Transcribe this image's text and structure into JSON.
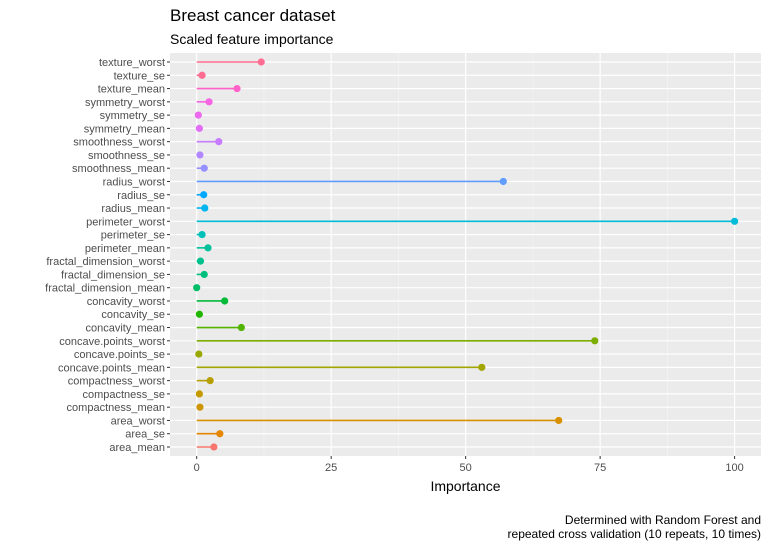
{
  "chart_data": {
    "type": "lollipop",
    "title": "Breast cancer dataset",
    "subtitle": "Scaled feature importance",
    "xlabel": "Importance",
    "ylabel": "",
    "xlim": [
      0,
      100
    ],
    "xticks": [
      0,
      25,
      50,
      75,
      100
    ],
    "grid": true,
    "legend": "none",
    "caption": [
      "Determined with Random Forest and",
      "repeated cross validation (10 repeats, 10 times)"
    ],
    "categories": [
      "texture_worst",
      "texture_se",
      "texture_mean",
      "symmetry_worst",
      "symmetry_se",
      "symmetry_mean",
      "smoothness_worst",
      "smoothness_se",
      "smoothness_mean",
      "radius_worst",
      "radius_se",
      "radius_mean",
      "perimeter_worst",
      "perimeter_se",
      "perimeter_mean",
      "fractal_dimension_worst",
      "fractal_dimension_se",
      "fractal_dimension_mean",
      "concavity_worst",
      "concavity_se",
      "concavity_mean",
      "concave.points_worst",
      "concave.points_se",
      "concave.points_mean",
      "compactness_worst",
      "compactness_se",
      "compactness_mean",
      "area_worst",
      "area_se",
      "area_mean"
    ],
    "values": [
      12,
      1,
      7.5,
      2.3,
      0.3,
      0.5,
      4.1,
      0.6,
      1.4,
      57,
      1.3,
      1.5,
      100,
      1.0,
      2.1,
      0.7,
      1.4,
      0.0,
      5.2,
      0.5,
      8.3,
      74,
      0.4,
      53,
      2.5,
      0.5,
      0.6,
      67.3,
      4.3,
      3.2
    ],
    "colors": [
      "#FF6C91",
      "#FF6C91",
      "#FF61C9",
      "#F564E3",
      "#EC69EF",
      "#E26EF7",
      "#C77CFF",
      "#B286FF",
      "#9590FF",
      "#619CFF",
      "#00A9FF",
      "#00B4F0",
      "#00BCD8",
      "#00C0B8",
      "#00C19A",
      "#00C08B",
      "#00BF7D",
      "#00BE67",
      "#00BA38",
      "#1FB700",
      "#53B400",
      "#7CAE00",
      "#99A800",
      "#A3A500",
      "#B79F00",
      "#C49A00",
      "#CD9600",
      "#D89000",
      "#E58700",
      "#F8766D"
    ]
  }
}
